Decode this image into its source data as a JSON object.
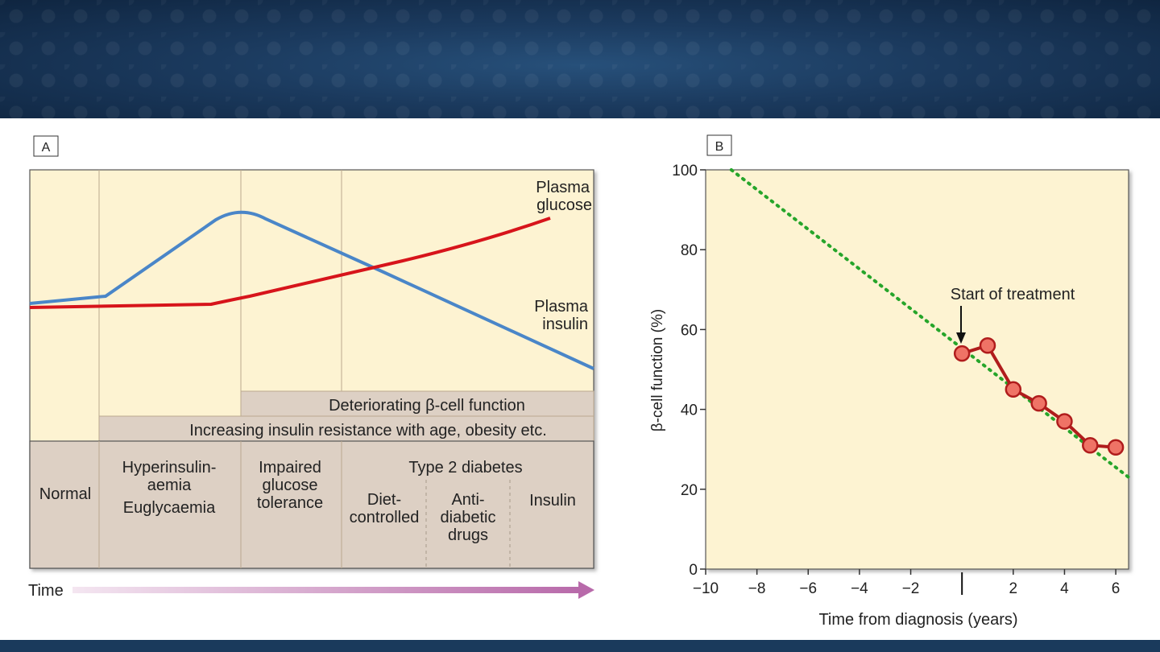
{
  "panel_a": {
    "tag": "A",
    "curve_labels": {
      "glucose_line1": "Plasma",
      "glucose_line2": "glucose",
      "insulin_line1": "Plasma",
      "insulin_line2": "insulin"
    },
    "bars": {
      "beta_cell": "Deteriorating β-cell function",
      "resistance": "Increasing insulin resistance with age, obesity etc."
    },
    "stages": {
      "normal": "Normal",
      "hyper_1": "Hyperinsulin-",
      "hyper_2": "aemia",
      "hyper_3": "Euglycaemia",
      "igt_1": "Impaired",
      "igt_2": "glucose",
      "igt_3": "tolerance",
      "t2d": "Type 2 diabetes",
      "diet_1": "Diet-",
      "diet_2": "controlled",
      "drugs_1": "Anti-",
      "drugs_2": "diabetic",
      "drugs_3": "drugs",
      "insulin": "Insulin"
    },
    "time_label": "Time"
  },
  "panel_b": {
    "tag": "B",
    "annotation": "Start of treatment"
  },
  "colors": {
    "panel_bg": "#fdf3d2",
    "stage_bg": "#ddd0c4",
    "glucose": "#d7141b",
    "insulin": "#4a86c8",
    "dotted": "#26a52a",
    "marker_fill": "#ef7366",
    "marker_stroke": "#b01c1c",
    "banner": "#1b3a5e",
    "time_arrow": "#b86aaa"
  },
  "chart_data": [
    {
      "type": "line",
      "panel": "A",
      "xlabel": "Time",
      "series": [
        {
          "name": "Plasma glucose",
          "color": "#d7141b",
          "x": [
            0,
            0.13,
            0.33,
            0.55,
            0.74,
            0.92
          ],
          "y": [
            0.35,
            0.355,
            0.36,
            0.42,
            0.52,
            0.72
          ]
        },
        {
          "name": "Plasma insulin",
          "color": "#4a86c8",
          "x": [
            0,
            0.14,
            0.37,
            0.63,
            1.0
          ],
          "y": [
            0.37,
            0.38,
            0.88,
            0.46,
            0.05
          ]
        }
      ]
    },
    {
      "type": "line",
      "panel": "B",
      "xlabel": "Time from diagnosis (years)",
      "ylabel": "β-cell function (%)",
      "xlim": [
        -10,
        6.5
      ],
      "ylim": [
        0,
        100
      ],
      "xticks": [
        "−10",
        "−8",
        "−6",
        "−4",
        "−2",
        "2",
        "4",
        "6"
      ],
      "yticks": [
        "0",
        "20",
        "40",
        "60",
        "80",
        "100"
      ],
      "series": [
        {
          "name": "",
          "style": "dotted",
          "color": "#26a52a",
          "x": [
            -9,
            6.5
          ],
          "y": [
            100,
            23
          ]
        },
        {
          "name": "",
          "style": "markers",
          "color": "#b01c1c",
          "x": [
            0,
            1,
            2,
            3,
            4,
            5,
            6
          ],
          "y": [
            54,
            56,
            45,
            41.5,
            37,
            31,
            30.5
          ]
        }
      ],
      "annotation": {
        "text": "Start of treatment",
        "x": 0,
        "y": 54
      }
    }
  ]
}
